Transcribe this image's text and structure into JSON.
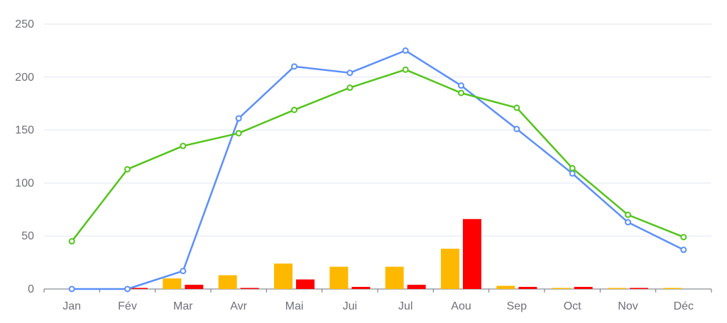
{
  "chart_data": {
    "type": "bar",
    "categories": [
      "Jan",
      "Fév",
      "Mar",
      "Avr",
      "Mai",
      "Jui",
      "Jul",
      "Aou",
      "Sep",
      "Oct",
      "Nov",
      "Déc"
    ],
    "ylim": [
      0,
      250
    ],
    "yticks": [
      0,
      50,
      100,
      150,
      200,
      250
    ],
    "grid": true,
    "bar_series": [
      {
        "color": "#ffb800",
        "values": [
          0,
          0,
          10,
          13,
          24,
          21,
          21,
          38,
          3,
          1,
          1,
          1
        ]
      },
      {
        "color": "#ff0000",
        "values": [
          0,
          1,
          4,
          1,
          9,
          2,
          4,
          66,
          2,
          2,
          1,
          0
        ]
      }
    ],
    "line_series": [
      {
        "color": "#5b8ff9",
        "values": [
          0,
          0,
          17,
          161,
          210,
          204,
          225,
          192,
          151,
          109,
          63,
          37
        ]
      },
      {
        "color": "#52c41a",
        "values": [
          45,
          113,
          135,
          147,
          169,
          190,
          207,
          185,
          171,
          114,
          70,
          49
        ]
      }
    ]
  }
}
